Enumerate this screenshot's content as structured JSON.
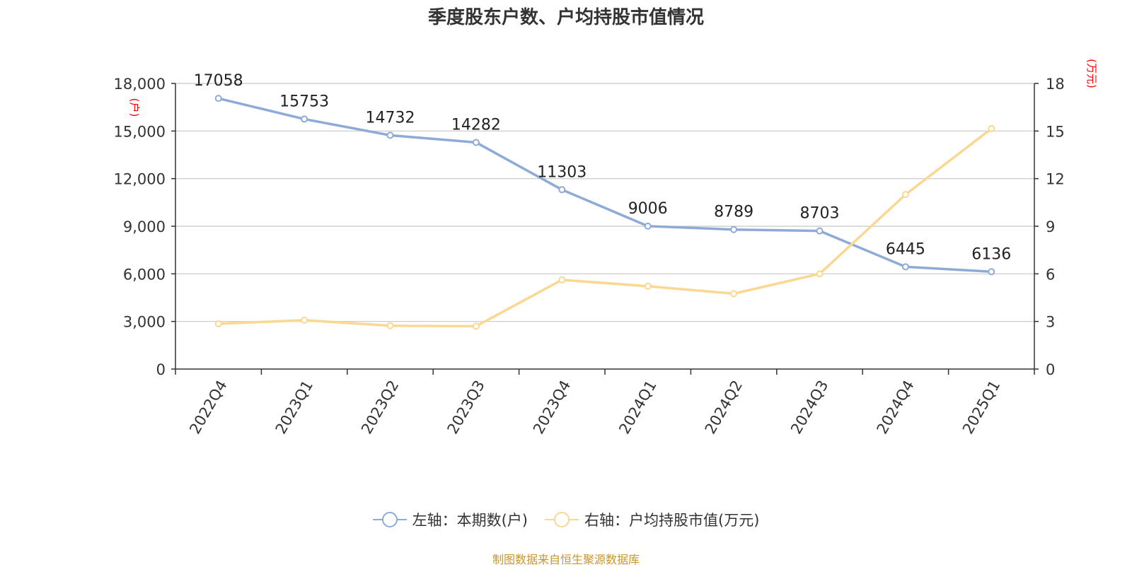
{
  "chart_data": {
    "type": "line",
    "title": "季度股东户数、户均持股市值情况",
    "categories": [
      "2022Q4",
      "2023Q1",
      "2023Q2",
      "2023Q3",
      "2023Q4",
      "2024Q1",
      "2024Q2",
      "2024Q3",
      "2024Q4",
      "2025Q1"
    ],
    "y_left": {
      "label": "(户)",
      "ylim": [
        0,
        18000
      ],
      "ticks": [
        0,
        3000,
        6000,
        9000,
        12000,
        15000,
        18000
      ],
      "tick_labels": [
        "0",
        "3,000",
        "6,000",
        "9,000",
        "12,000",
        "15,000",
        "18,000"
      ]
    },
    "y_right": {
      "label": "(万元)",
      "ylim": [
        0,
        18
      ],
      "ticks": [
        0,
        3,
        6,
        9,
        12,
        15,
        18
      ],
      "tick_labels": [
        "0",
        "3",
        "6",
        "9",
        "12",
        "15",
        "18"
      ]
    },
    "series": [
      {
        "name": "左轴：本期数(户)",
        "axis": "left",
        "color": "#8eabd8",
        "values": [
          17058,
          15753,
          14732,
          14282,
          11303,
          9006,
          8789,
          8703,
          6445,
          6136
        ],
        "data_labels": [
          "17058",
          "15753",
          "14732",
          "14282",
          "11303",
          "9006",
          "8789",
          "8703",
          "6445",
          "6136"
        ]
      },
      {
        "name": "右轴：户均持股市值(万元)",
        "axis": "right",
        "color": "#fbd891",
        "values": [
          2.85,
          3.08,
          2.73,
          2.7,
          5.62,
          5.22,
          4.75,
          6.0,
          11.0,
          15.15
        ]
      }
    ],
    "grid": true,
    "legend_position": "bottom-center",
    "axis_label_color": "#ff0000"
  },
  "footer": {
    "source": "制图数据来自恒生聚源数据库",
    "color": "#c8962e"
  }
}
